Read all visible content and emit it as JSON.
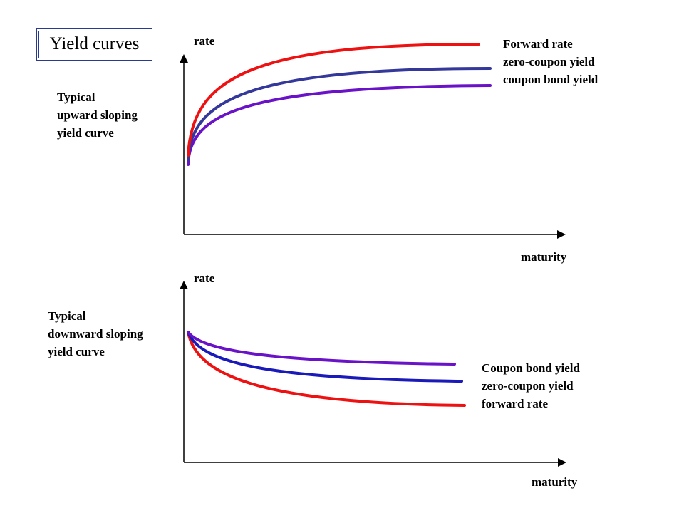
{
  "title": "Yield curves",
  "top_panel": {
    "y_axis_label": "rate",
    "x_axis_label": "maturity",
    "description": [
      "Typical",
      "upward sloping",
      "yield curve"
    ],
    "legend": [
      "Forward rate",
      "zero-coupon yield",
      "coupon bond yield"
    ]
  },
  "bottom_panel": {
    "y_axis_label": "rate",
    "x_axis_label": "maturity",
    "description": [
      "Typical",
      "downward sloping",
      "yield curve"
    ],
    "legend": [
      "Coupon bond yield",
      "zero-coupon yield",
      "forward rate"
    ]
  },
  "colors": {
    "forward_rate": "#ee1111",
    "zero_coupon_yield_top": "#33389a",
    "zero_coupon_yield_bottom": "#1a1aba",
    "coupon_bond_yield": "#6a12c8",
    "axes": "#000000",
    "title_border": "#2a3a8c"
  }
}
